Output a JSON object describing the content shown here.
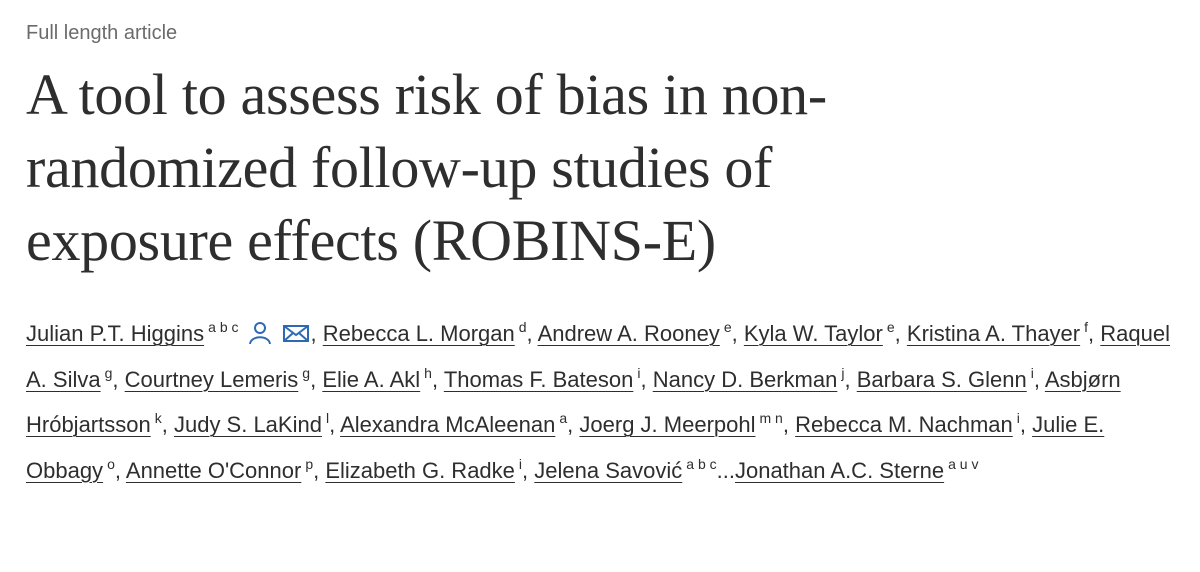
{
  "article_type": "Full length article",
  "title": "A tool to assess risk of bias in non-randomized follow-up studies of exposure effects (ROBINS-E)",
  "separator": ",",
  "ellipsis": "...",
  "authors": [
    {
      "name": "Julian P.T. Higgins",
      "affiliations": "a b c"
    },
    {
      "name": "Rebecca L. Morgan",
      "affiliations": "d"
    },
    {
      "name": "Andrew A. Rooney",
      "affiliations": "e"
    },
    {
      "name": "Kyla W. Taylor",
      "affiliations": "e"
    },
    {
      "name": "Kristina A. Thayer",
      "affiliations": "f"
    },
    {
      "name": "Raquel A. Silva",
      "affiliations": "g"
    },
    {
      "name": "Courtney Lemeris",
      "affiliations": "g"
    },
    {
      "name": "Elie A. Akl",
      "affiliations": "h"
    },
    {
      "name": "Thomas F. Bateson",
      "affiliations": "i"
    },
    {
      "name": "Nancy D. Berkman",
      "affiliations": "j"
    },
    {
      "name": "Barbara S. Glenn",
      "affiliations": "i"
    },
    {
      "name": "Asbjørn Hróbjartsson",
      "affiliations": "k"
    },
    {
      "name": "Judy S. LaKind",
      "affiliations": "l"
    },
    {
      "name": "Alexandra McAleenan",
      "affiliations": "a"
    },
    {
      "name": "Joerg J. Meerpohl",
      "affiliations": "m n"
    },
    {
      "name": "Rebecca M. Nachman",
      "affiliations": "i"
    },
    {
      "name": "Julie E. Obbagy",
      "affiliations": "o"
    },
    {
      "name": "Annette O'Connor",
      "affiliations": "p"
    },
    {
      "name": "Elizabeth G. Radke",
      "affiliations": "i"
    },
    {
      "name": "Jelena Savović",
      "affiliations": "a b c"
    },
    {
      "name": "Jonathan A.C. Sterne",
      "affiliations": "a u v"
    }
  ]
}
